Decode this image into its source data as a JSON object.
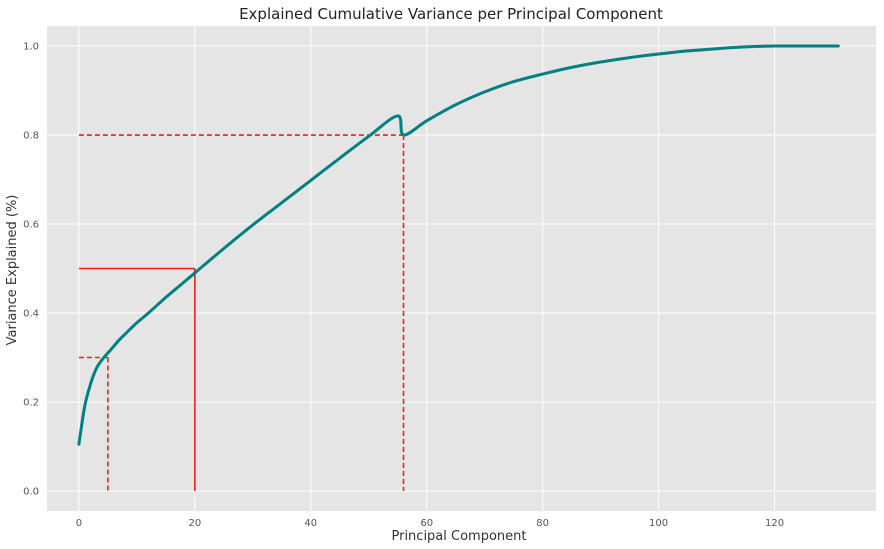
{
  "chart_data": {
    "type": "line",
    "title": "Explained Cumulative Variance per Principal Component",
    "xlabel": "Principal Component",
    "ylabel": "Variance Explained (%)",
    "xlim": [
      -5.5,
      137.5
    ],
    "ylim": [
      -0.045,
      1.045
    ],
    "grid": true,
    "background": "#e5e5e5",
    "line_color": "#008080",
    "marker_color": "#e8231f",
    "x_ticks": [
      0,
      20,
      40,
      60,
      80,
      100,
      120
    ],
    "x_tick_labels": [
      "0",
      "20",
      "40",
      "60",
      "80",
      "100",
      "120"
    ],
    "y_ticks": [
      0.0,
      0.2,
      0.4,
      0.6,
      0.8,
      1.0
    ],
    "y_tick_labels": [
      "0.0",
      "0.2",
      "0.4",
      "0.6",
      "0.8",
      "1.0"
    ],
    "series": [
      {
        "x": [
          0,
          1,
          2,
          3,
          4,
          5,
          6,
          7,
          8,
          10,
          12,
          15,
          18,
          20,
          25,
          30,
          35,
          40,
          45,
          50,
          55,
          56,
          60,
          65,
          70,
          75,
          80,
          85,
          90,
          95,
          100,
          105,
          110,
          115,
          120,
          125,
          131
        ],
        "y": [
          0.105,
          0.19,
          0.24,
          0.275,
          0.295,
          0.31,
          0.325,
          0.34,
          0.353,
          0.378,
          0.4,
          0.435,
          0.468,
          0.49,
          0.545,
          0.598,
          0.648,
          0.698,
          0.748,
          0.797,
          0.843,
          0.8,
          0.832,
          0.868,
          0.897,
          0.92,
          0.937,
          0.952,
          0.964,
          0.974,
          0.982,
          0.989,
          0.994,
          0.998,
          1.0,
          1.0,
          1.0
        ]
      }
    ],
    "reference_markers": [
      {
        "x": 5,
        "y": 0.3,
        "style": "dashed"
      },
      {
        "x": 20,
        "y": 0.5,
        "style": "solid"
      },
      {
        "x": 56,
        "y": 0.8,
        "style": "dashed"
      }
    ]
  }
}
